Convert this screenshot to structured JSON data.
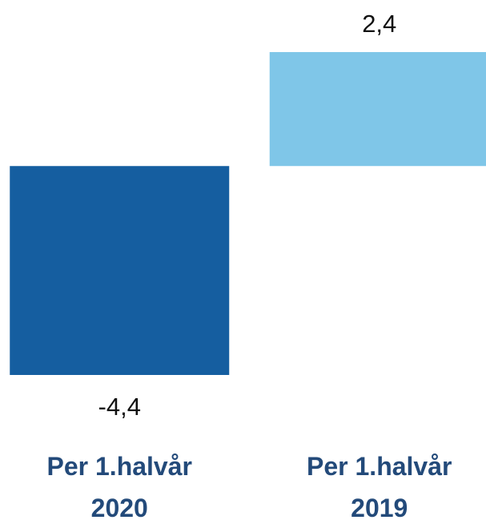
{
  "chart_data": {
    "type": "bar",
    "categories": [
      "Per 1.halvår 2020",
      "Per 1.halvår 2019"
    ],
    "values": [
      -4.4,
      2.4
    ],
    "value_labels": [
      "-4,4",
      "2,4"
    ],
    "colors": [
      "#155ea0",
      "#7fc6e8"
    ],
    "ylim": [
      -4.4,
      2.4
    ]
  }
}
